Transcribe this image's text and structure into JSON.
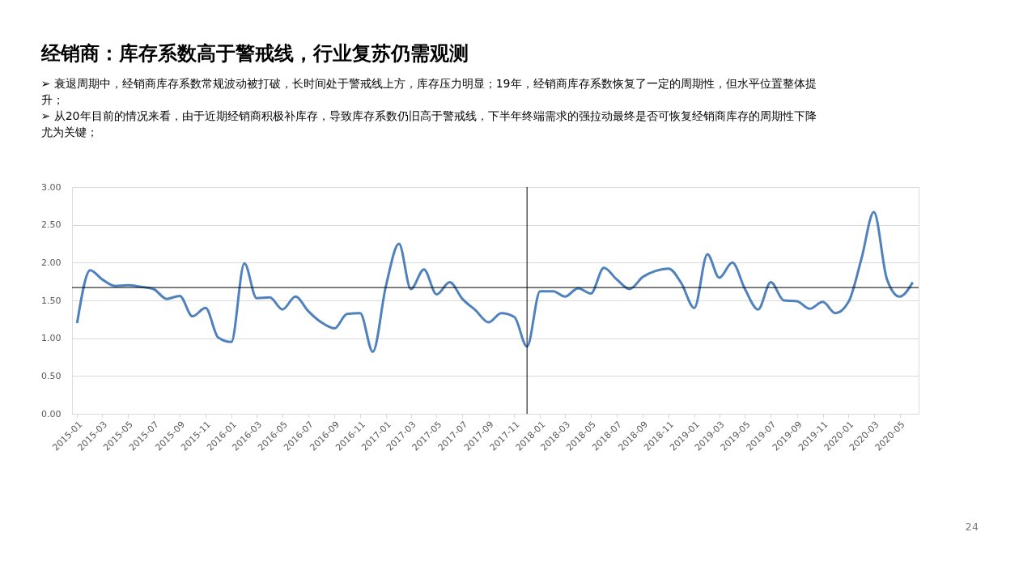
{
  "chart_data": {
    "type": "line",
    "title": "经销商：库存系数高于警戒线，行业复苏仍需观测",
    "annotations": [
      "➢ 衰退周期中，经销商库存系数常规波动被打破，长时间处于警戒线上方，库存压力明显；19年，经销商库存系数恢复了一定的周期性，但水平位置整体提升；",
      "➢ 从20年目前的情况来看，由于近期经销商积极补库存，导致库存系数仍旧高于警戒线，下半年终端需求的强拉动最终是否可恢复经销商库存的周期性下降尤为关键；",
      "24"
    ],
    "x": [
      "2015-01",
      "2015-02",
      "2015-03",
      "2015-04",
      "2015-05",
      "2015-06",
      "2015-07",
      "2015-08",
      "2015-09",
      "2015-10",
      "2015-11",
      "2015-12",
      "2016-01",
      "2016-02",
      "2016-03",
      "2016-04",
      "2016-05",
      "2016-06",
      "2016-07",
      "2016-08",
      "2016-09",
      "2016-10",
      "2016-11",
      "2016-12",
      "2017-01",
      "2017-02",
      "2017-03",
      "2017-04",
      "2017-05",
      "2017-06",
      "2017-07",
      "2017-08",
      "2017-09",
      "2017-10",
      "2017-11",
      "2017-12",
      "2018-01",
      "2018-02",
      "2018-03",
      "2018-04",
      "2018-05",
      "2018-06",
      "2018-07",
      "2018-08",
      "2018-09",
      "2018-10",
      "2018-11",
      "2018-12",
      "2019-01",
      "2019-02",
      "2019-03",
      "2019-04",
      "2019-05",
      "2019-06",
      "2019-07",
      "2019-08",
      "2019-09",
      "2019-10",
      "2019-11",
      "2019-12",
      "2020-01",
      "2020-02",
      "2020-03",
      "2020-04",
      "2020-05",
      "2020-06"
    ],
    "series": [
      {
        "color": "#4f81bd",
        "values": [
          1.2,
          1.9,
          1.78,
          1.69,
          1.7,
          1.68,
          1.65,
          1.52,
          1.56,
          1.29,
          1.4,
          1.01,
          0.95,
          1.99,
          1.53,
          1.54,
          1.38,
          1.55,
          1.36,
          1.21,
          1.13,
          1.32,
          1.33,
          0.82,
          1.69,
          2.25,
          1.65,
          1.91,
          1.58,
          1.74,
          1.52,
          1.37,
          1.21,
          1.33,
          1.28,
          0.89,
          1.62,
          1.62,
          1.55,
          1.66,
          1.59,
          1.93,
          1.78,
          1.65,
          1.81,
          1.89,
          1.92,
          1.73,
          1.4,
          2.11,
          1.8,
          2.0,
          1.65,
          1.38,
          1.74,
          1.5,
          1.49,
          1.39,
          1.48,
          1.33,
          1.48,
          2.06,
          2.67,
          1.78,
          1.55,
          1.74
        ]
      }
    ],
    "xlim": [
      "2014-12-20",
      "2020-06-15"
    ],
    "xticks": [
      "2015-01",
      "2015-03",
      "2015-05",
      "2015-07",
      "2015-09",
      "2015-11",
      "2016-01",
      "2016-03",
      "2016-05",
      "2016-07",
      "2016-09",
      "2016-11",
      "2017-01",
      "2017-03",
      "2017-05",
      "2017-07",
      "2017-09",
      "2017-11",
      "2018-01",
      "2018-03",
      "2018-05",
      "2018-07",
      "2018-09",
      "2018-11",
      "2019-01",
      "2019-03",
      "2019-05",
      "2019-07",
      "2019-09",
      "2019-11",
      "2020-01",
      "2020-03",
      "2020-05"
    ],
    "ylim": [
      0,
      3
    ],
    "yticks": [
      {
        "value": 0,
        "label": "0.00"
      },
      {
        "value": 0.5,
        "label": "0.50"
      },
      {
        "value": 1,
        "label": "1.00"
      },
      {
        "value": 1.5,
        "label": "1.50"
      },
      {
        "value": 2,
        "label": "2.00"
      },
      {
        "value": 2.5,
        "label": "2.50"
      },
      {
        "value": 3,
        "label": "3.00"
      }
    ],
    "ref_lines": [
      {
        "axis": "y",
        "value": 1.67,
        "color": "#000000"
      },
      {
        "axis": "x",
        "value": "2017-12",
        "color": "#000000"
      }
    ],
    "grid": "y",
    "marker": "none",
    "line_style": "solid"
  }
}
